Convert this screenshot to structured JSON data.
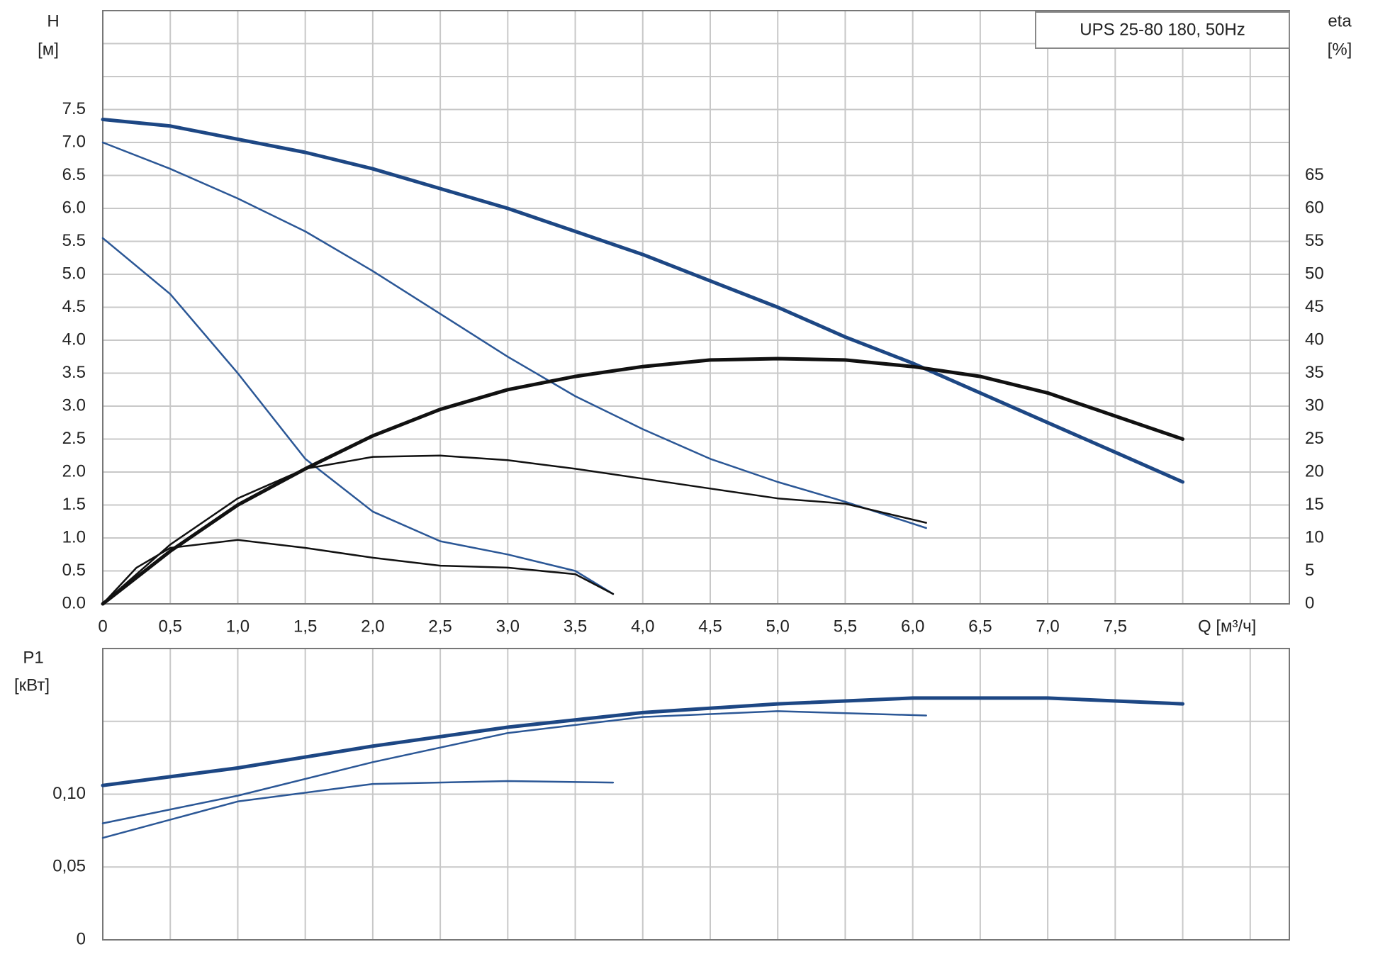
{
  "chart_data": [
    {
      "type": "line",
      "title": "UPS 25-80 180, 50Hz",
      "ylabel": "H",
      "yunit": "[м]",
      "y2label": "eta",
      "y2unit": "[%]",
      "xlabel": "Q [м³/ч]",
      "xlim": [
        0,
        8.79
      ],
      "ylim": [
        0,
        9
      ],
      "y2lim": [
        0,
        90
      ],
      "xticks": [
        0,
        {
          "value": 0.5,
          "label": "0,5"
        },
        {
          "value": 1,
          "label": "1,0"
        },
        {
          "value": 1.5,
          "label": "1,5"
        },
        {
          "value": 2,
          "label": "2,0"
        },
        {
          "value": 2.5,
          "label": "2,5"
        },
        {
          "value": 3,
          "label": "3,0"
        },
        {
          "value": 3.5,
          "label": "3,5"
        },
        {
          "value": 4,
          "label": "4,0"
        },
        {
          "value": 4.5,
          "label": "4,5"
        },
        {
          "value": 5,
          "label": "5,0"
        },
        {
          "value": 5.5,
          "label": "5,5"
        },
        {
          "value": 6,
          "label": "6,0"
        },
        {
          "value": 6.5,
          "label": "6,5"
        },
        {
          "value": 7,
          "label": "7,0"
        },
        {
          "value": 7.5,
          "label": "7,5"
        }
      ],
      "xgrid": [
        0.5,
        1,
        1.5,
        2,
        2.5,
        3,
        3.5,
        4,
        4.5,
        5,
        5.5,
        6,
        6.5,
        7,
        7.5,
        8,
        8.5
      ],
      "yticks": [
        {
          "value": 0,
          "label": "0.0"
        },
        0.5,
        {
          "value": 1,
          "label": "1.0"
        },
        1.5,
        {
          "value": 2,
          "label": "2.0"
        },
        2.5,
        {
          "value": 3,
          "label": "3.0"
        },
        3.5,
        {
          "value": 4,
          "label": "4.0"
        },
        4.5,
        {
          "value": 5,
          "label": "5.0"
        },
        5.5,
        {
          "value": 6,
          "label": "6.0"
        },
        6.5,
        {
          "value": 7,
          "label": "7.0"
        },
        7.5
      ],
      "ygrid": [
        0.5,
        1,
        1.5,
        2,
        2.5,
        3,
        3.5,
        4,
        4.5,
        5,
        5.5,
        6,
        6.5,
        7,
        7.5,
        8,
        8.5
      ],
      "y2ticks": [
        0,
        5,
        10,
        15,
        20,
        25,
        30,
        35,
        40,
        45,
        50,
        55,
        60,
        65
      ],
      "series": [
        {
          "color": "#1d4784",
          "line_width": 5,
          "x": [
            0,
            0.5,
            1,
            1.5,
            2,
            2.5,
            3,
            3.5,
            4,
            4.5,
            5,
            5.5,
            6,
            6.5,
            7,
            7.5,
            8
          ],
          "values": [
            7.35,
            7.25,
            7.05,
            6.85,
            6.6,
            6.3,
            6.0,
            5.65,
            5.3,
            4.9,
            4.5,
            4.05,
            3.65,
            3.2,
            2.75,
            2.3,
            1.85
          ]
        },
        {
          "color": "#2b5796",
          "line_width": 2.5,
          "x": [
            0,
            0.5,
            1,
            1.5,
            2,
            2.5,
            3,
            3.5,
            4,
            4.5,
            5,
            5.5,
            6.1
          ],
          "values": [
            7.0,
            6.6,
            6.15,
            5.65,
            5.05,
            4.4,
            3.75,
            3.15,
            2.65,
            2.2,
            1.85,
            1.55,
            1.15
          ]
        },
        {
          "color": "#2b5796",
          "line_width": 2.5,
          "x": [
            0,
            0.5,
            1,
            1.5,
            2,
            2.5,
            3,
            3.5,
            3.78
          ],
          "values": [
            5.55,
            4.7,
            3.5,
            2.2,
            1.4,
            0.95,
            0.75,
            0.5,
            0.15
          ]
        },
        {
          "color": "#111111",
          "line_width": 5,
          "axis": "y2",
          "x": [
            0,
            0.5,
            1,
            1.5,
            2,
            2.5,
            3,
            3.5,
            4,
            4.5,
            5,
            5.5,
            6,
            6.5,
            7,
            7.5,
            8
          ],
          "values": [
            0,
            8,
            15,
            20.5,
            25.5,
            29.5,
            32.5,
            34.5,
            36,
            37,
            37.2,
            37,
            36,
            34.5,
            32,
            28.5,
            25
          ]
        },
        {
          "color": "#111111",
          "line_width": 2.5,
          "axis": "y2",
          "x": [
            0,
            0.5,
            1,
            1.5,
            2,
            2.5,
            3,
            3.5,
            4,
            4.5,
            5,
            5.5,
            6.1
          ],
          "values": [
            0,
            9,
            16,
            20.5,
            22.3,
            22.5,
            21.8,
            20.5,
            19,
            17.5,
            16,
            15.2,
            12.3
          ]
        },
        {
          "color": "#111111",
          "line_width": 2.5,
          "axis": "y2",
          "x": [
            0,
            0.25,
            0.5,
            1,
            1.5,
            2,
            2.5,
            3,
            3.5,
            3.78
          ],
          "values": [
            0,
            5.5,
            8.5,
            9.7,
            8.5,
            7,
            5.8,
            5.5,
            4.5,
            1.5
          ]
        }
      ]
    },
    {
      "type": "line",
      "ylabel": "P1",
      "yunit": "[кВт]",
      "xlim": [
        0,
        8.79
      ],
      "ylim": [
        0,
        0.2
      ],
      "xgrid": [
        0.5,
        1,
        1.5,
        2,
        2.5,
        3,
        3.5,
        4,
        4.5,
        5,
        5.5,
        6,
        6.5,
        7,
        7.5,
        8,
        8.5
      ],
      "yticks": [
        0,
        {
          "value": 0.05,
          "label": "0,05"
        },
        {
          "value": 0.1,
          "label": "0,10"
        }
      ],
      "ygrid": [
        0.05,
        0.1,
        0.15
      ],
      "series": [
        {
          "color": "#1d4784",
          "line_width": 5,
          "x": [
            0,
            1,
            2,
            3,
            4,
            5,
            6,
            7,
            8
          ],
          "values": [
            0.106,
            0.118,
            0.133,
            0.146,
            0.156,
            0.162,
            0.166,
            0.166,
            0.162
          ]
        },
        {
          "color": "#2b5796",
          "line_width": 2.5,
          "x": [
            0,
            1,
            2,
            3,
            4,
            5,
            6.1
          ],
          "values": [
            0.08,
            0.099,
            0.122,
            0.142,
            0.153,
            0.157,
            0.154
          ]
        },
        {
          "color": "#2b5796",
          "line_width": 2.5,
          "x": [
            0,
            1,
            2,
            3,
            3.78
          ],
          "values": [
            0.07,
            0.095,
            0.107,
            0.109,
            0.108
          ]
        }
      ]
    }
  ]
}
